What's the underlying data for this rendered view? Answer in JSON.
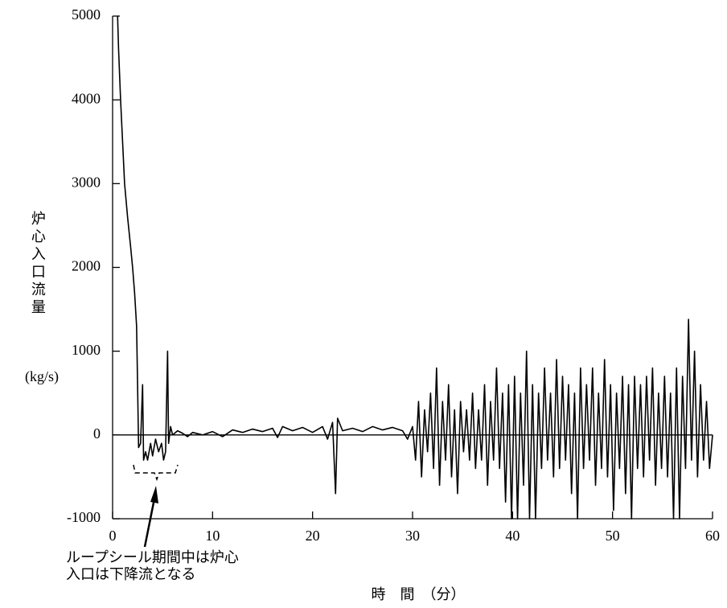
{
  "chart_data": {
    "type": "line",
    "y_label": "炉心入口流量",
    "y_unit": "(kg/s)",
    "x_label": "時　間　（分）",
    "annotation": [
      "ループシール期間中は炉心",
      "入口は下降流となる"
    ],
    "color": "#000000",
    "xlim": [
      0,
      60
    ],
    "xticks": [
      0,
      10,
      20,
      30,
      40,
      50,
      60
    ],
    "ylim": [
      -1000,
      5000
    ],
    "yticks": [
      -1000,
      0,
      1000,
      2000,
      3000,
      4000,
      5000
    ],
    "x": [
      0.5,
      0.6,
      0.8,
      1.0,
      1.2,
      1.5,
      1.8,
      2.0,
      2.2,
      2.4,
      2.5,
      2.6,
      2.8,
      3.0,
      3.1,
      3.3,
      3.5,
      3.8,
      4.0,
      4.3,
      4.6,
      4.9,
      5.1,
      5.3,
      5.5,
      5.6,
      5.8,
      6.0,
      6.5,
      7,
      7.5,
      8,
      9,
      10,
      11,
      12,
      13,
      14,
      15,
      16,
      16.5,
      17,
      18,
      19,
      20,
      21,
      21.5,
      22,
      22.3,
      22.5,
      23,
      24,
      25,
      26,
      27,
      28,
      29,
      29.5,
      30,
      30.3,
      30.6,
      30.9,
      31.2,
      31.5,
      31.8,
      32.1,
      32.4,
      32.7,
      33,
      33.3,
      33.6,
      33.9,
      34.2,
      34.5,
      34.8,
      35.1,
      35.4,
      35.7,
      36,
      36.3,
      36.6,
      36.9,
      37.2,
      37.5,
      37.8,
      38.1,
      38.4,
      38.7,
      39,
      39.3,
      39.6,
      39.9,
      40.2,
      40.5,
      40.8,
      41.1,
      41.4,
      41.7,
      42,
      42.3,
      42.6,
      42.9,
      43.2,
      43.5,
      43.8,
      44.1,
      44.4,
      44.7,
      45,
      45.3,
      45.6,
      45.9,
      46.2,
      46.5,
      46.8,
      47.1,
      47.4,
      47.7,
      48,
      48.3,
      48.6,
      48.9,
      49.2,
      49.5,
      49.8,
      50.1,
      50.4,
      50.7,
      51,
      51.3,
      51.6,
      51.9,
      52.2,
      52.5,
      52.8,
      53.1,
      53.4,
      53.7,
      54,
      54.3,
      54.6,
      54.9,
      55.2,
      55.5,
      55.8,
      56.1,
      56.4,
      56.7,
      57,
      57.3,
      57.6,
      57.9,
      58.2,
      58.5,
      58.8,
      59.1,
      59.4,
      59.7,
      60
    ],
    "values": [
      5000,
      4600,
      4000,
      3500,
      3000,
      2600,
      2250,
      2000,
      1700,
      1300,
      600,
      -150,
      -100,
      600,
      -300,
      -200,
      -300,
      -100,
      -250,
      -50,
      -200,
      -100,
      -300,
      -200,
      1000,
      -100,
      100,
      0,
      50,
      20,
      -20,
      30,
      0,
      40,
      -20,
      60,
      30,
      70,
      40,
      80,
      -30,
      100,
      50,
      90,
      30,
      100,
      -50,
      150,
      -700,
      200,
      50,
      80,
      40,
      100,
      60,
      90,
      50,
      -50,
      100,
      -300,
      400,
      -500,
      300,
      -200,
      500,
      -400,
      800,
      -600,
      400,
      -300,
      600,
      -500,
      300,
      -700,
      400,
      -200,
      300,
      -300,
      500,
      -400,
      300,
      -300,
      600,
      -600,
      400,
      -300,
      800,
      -400,
      500,
      -800,
      600,
      -1000,
      700,
      -1000,
      500,
      -600,
      1000,
      -1000,
      600,
      -1000,
      500,
      -400,
      800,
      -300,
      500,
      -500,
      900,
      -400,
      700,
      -300,
      600,
      -700,
      500,
      -1000,
      800,
      -400,
      600,
      -300,
      800,
      -600,
      500,
      -400,
      900,
      -500,
      600,
      -900,
      500,
      -400,
      700,
      -700,
      600,
      -1000,
      700,
      -400,
      600,
      -500,
      700,
      -300,
      800,
      -600,
      500,
      -400,
      700,
      -500,
      500,
      -1000,
      800,
      -1000,
      700,
      -400,
      1380,
      -300,
      1000,
      -500,
      600,
      -300,
      400,
      -400,
      0
    ]
  }
}
